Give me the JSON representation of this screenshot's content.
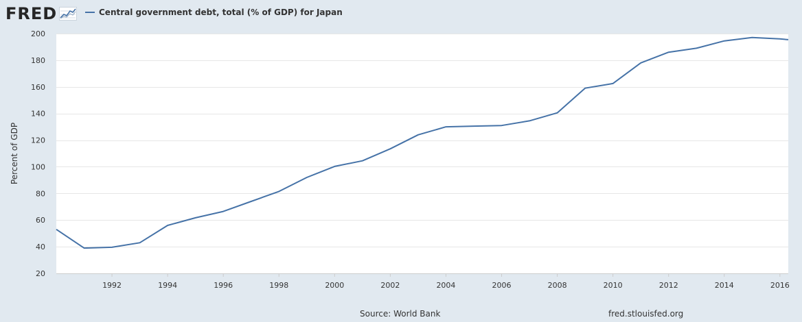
{
  "header": {
    "logo_text": "FRED",
    "legend_label": "Central government debt, total (% of GDP) for Japan"
  },
  "footer": {
    "source": "Source: World Bank",
    "url": "fred.stlouisfed.org"
  },
  "colors": {
    "series": "#4572a7",
    "background": "#e1e9f0",
    "plot": "#ffffff",
    "grid": "#e6e6e6"
  },
  "chart_data": {
    "type": "line",
    "title": "",
    "xlabel": "",
    "ylabel": "Percent of GDP",
    "ylim": [
      20,
      200
    ],
    "xlim": [
      1990,
      2016.3
    ],
    "yticks": [
      20,
      40,
      60,
      80,
      100,
      120,
      140,
      160,
      180,
      200
    ],
    "xticks": [
      1992,
      1994,
      1996,
      1998,
      2000,
      2002,
      2004,
      2006,
      2008,
      2010,
      2012,
      2014,
      2016
    ],
    "grid": true,
    "legend": "top-left",
    "series": [
      {
        "name": "Central government debt, total (% of GDP) for Japan",
        "x": [
          1990,
          1991,
          1992,
          1993,
          1994,
          1995,
          1996,
          1997,
          1998,
          1999,
          2000,
          2001,
          2002,
          2003,
          2004,
          2005,
          2006,
          2007,
          2008,
          2009,
          2010,
          2011,
          2012,
          2013,
          2014,
          2015,
          2016,
          2016.3
        ],
        "y": [
          53,
          39,
          39.6,
          43,
          56,
          61.7,
          66.5,
          74,
          81.5,
          92,
          100.3,
          104.5,
          113.5,
          124,
          130,
          130.5,
          131,
          134.5,
          140.5,
          159,
          162.5,
          178,
          186,
          189,
          194.5,
          197,
          196,
          195.4
        ]
      }
    ]
  }
}
